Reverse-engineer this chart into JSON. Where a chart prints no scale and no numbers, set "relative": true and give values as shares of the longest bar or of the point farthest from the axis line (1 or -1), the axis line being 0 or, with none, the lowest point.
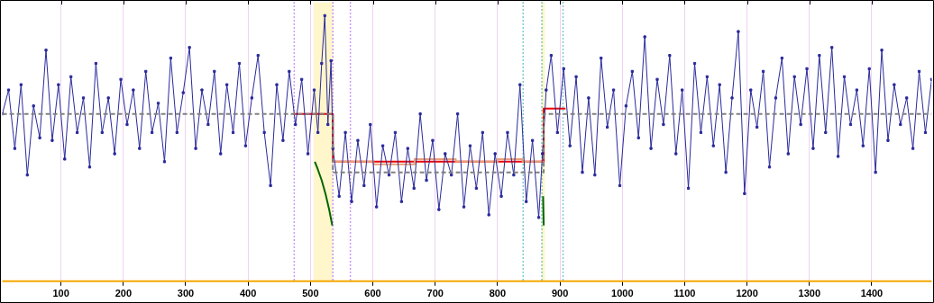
{
  "chart_data": {
    "type": "line",
    "relative": true,
    "xlim": [
      6,
      1496
    ],
    "xticks": [
      100,
      200,
      300,
      400,
      500,
      600,
      700,
      800,
      900,
      1000,
      1100,
      1200,
      1300,
      1400
    ],
    "grid": "x",
    "legend": false,
    "bands": [
      {
        "axis": "x",
        "from": 505,
        "to": 536,
        "color": "#fff6cc"
      },
      {
        "axis": "x",
        "from": 871,
        "to": 876,
        "color": "#fff6cc"
      }
    ],
    "ref_lines": [
      {
        "axis": "x",
        "value": 474,
        "color": "#9933ff",
        "line_style": "dotted"
      },
      {
        "axis": "x",
        "value": 536,
        "color": "#9933ff",
        "line_style": "dotted"
      },
      {
        "axis": "x",
        "value": 564,
        "color": "#9933ff",
        "line_style": "dotted"
      },
      {
        "axis": "x",
        "value": 841,
        "color": "#009999",
        "line_style": "dotted"
      },
      {
        "axis": "x",
        "value": 871,
        "color": "#009999",
        "line_style": "dotted"
      },
      {
        "axis": "x",
        "value": 905,
        "color": "#009999",
        "line_style": "dotted"
      }
    ],
    "series": [
      {
        "color": "#808080",
        "line_style": "dashed",
        "marker": "none",
        "x": [
          6,
          536,
          536,
          874,
          874,
          1496
        ],
        "values": [
          0.63,
          0.63,
          0.41,
          0.41,
          0.63,
          0.63
        ]
      },
      {
        "color": "#2a2a9c",
        "line_style": "solid",
        "marker": "square",
        "x": [
          6,
          16,
          26,
          36,
          46,
          56,
          66,
          76,
          86,
          96,
          106,
          116,
          126,
          136,
          146,
          156,
          166,
          176,
          186,
          196,
          206,
          216,
          226,
          236,
          246,
          256,
          266,
          276,
          286,
          296,
          306,
          316,
          326,
          336,
          346,
          356,
          366,
          376,
          386,
          396,
          406,
          416,
          426,
          436,
          446,
          456,
          466,
          476,
          486,
          496,
          506,
          512,
          518,
          523,
          528,
          533,
          536,
          546,
          556,
          566,
          576,
          586,
          596,
          606,
          616,
          626,
          636,
          646,
          656,
          666,
          676,
          686,
          696,
          706,
          716,
          726,
          736,
          746,
          756,
          766,
          776,
          786,
          796,
          806,
          816,
          826,
          836,
          846,
          856,
          866,
          872,
          878,
          886,
          896,
          906,
          916,
          926,
          936,
          946,
          956,
          966,
          976,
          986,
          996,
          1006,
          1016,
          1026,
          1036,
          1046,
          1056,
          1066,
          1076,
          1086,
          1096,
          1106,
          1116,
          1126,
          1136,
          1146,
          1156,
          1166,
          1176,
          1186,
          1196,
          1206,
          1216,
          1226,
          1236,
          1246,
          1256,
          1266,
          1276,
          1286,
          1296,
          1306,
          1316,
          1326,
          1336,
          1346,
          1356,
          1366,
          1376,
          1386,
          1396,
          1406,
          1416,
          1426,
          1436,
          1446,
          1456,
          1466,
          1476,
          1486,
          1496
        ],
        "values": [
          0.63,
          0.72,
          0.5,
          0.74,
          0.4,
          0.66,
          0.54,
          0.87,
          0.53,
          0.74,
          0.46,
          0.77,
          0.56,
          0.69,
          0.43,
          0.82,
          0.56,
          0.69,
          0.48,
          0.76,
          0.59,
          0.72,
          0.5,
          0.79,
          0.56,
          0.67,
          0.45,
          0.84,
          0.56,
          0.71,
          0.88,
          0.5,
          0.72,
          0.59,
          0.79,
          0.48,
          0.74,
          0.56,
          0.82,
          0.51,
          0.69,
          0.85,
          0.56,
          0.36,
          0.74,
          0.53,
          0.79,
          0.59,
          0.76,
          0.48,
          0.72,
          0.56,
          0.82,
          1.0,
          0.59,
          0.83,
          0.5,
          0.32,
          0.56,
          0.3,
          0.53,
          0.36,
          0.59,
          0.28,
          0.51,
          0.4,
          0.56,
          0.3,
          0.5,
          0.35,
          0.63,
          0.38,
          0.53,
          0.27,
          0.48,
          0.4,
          0.63,
          0.28,
          0.51,
          0.35,
          0.56,
          0.25,
          0.48,
          0.32,
          0.56,
          0.4,
          0.74,
          0.3,
          0.53,
          0.24,
          0.48,
          0.72,
          0.85,
          0.56,
          0.8,
          0.51,
          0.77,
          0.41,
          0.69,
          0.4,
          0.84,
          0.58,
          0.72,
          0.36,
          0.66,
          0.79,
          0.54,
          0.92,
          0.5,
          0.76,
          0.59,
          0.85,
          0.48,
          0.72,
          0.35,
          0.82,
          0.56,
          0.77,
          0.51,
          0.74,
          0.41,
          0.69,
          0.94,
          0.33,
          0.72,
          0.58,
          0.79,
          0.43,
          0.69,
          0.84,
          0.48,
          0.77,
          0.59,
          0.8,
          0.5,
          0.85,
          0.56,
          0.88,
          0.47,
          0.77,
          0.59,
          0.72,
          0.51,
          0.8,
          0.41,
          0.87,
          0.53,
          0.74,
          0.59,
          0.69,
          0.5,
          0.79,
          0.56,
          0.76
        ]
      },
      {
        "color": "#e9a07a",
        "line_style": "solid",
        "marker": "none",
        "x": [
          536,
          601,
          601,
          667,
          667,
          733,
          733,
          800,
          800,
          840,
          840,
          874
        ],
        "values": [
          0.45,
          0.45,
          0.44,
          0.44,
          0.46,
          0.46,
          0.45,
          0.45,
          0.46,
          0.46,
          0.45,
          0.45
        ]
      },
      {
        "color": "#ee0000",
        "line_style": "solid",
        "marker": "none",
        "x": [
          472,
          536,
          536,
          874,
          874,
          909
        ],
        "values": [
          0.63,
          0.63,
          0.45,
          0.45,
          0.65,
          0.65
        ]
      },
      {
        "color": "#006600",
        "line_style": "solid",
        "marker": "none",
        "x": [
          507,
          512,
          518,
          524,
          530,
          535,
          null,
          873,
          874
        ],
        "values": [
          0.45,
          0.42,
          0.38,
          0.33,
          0.27,
          0.21,
          null,
          0.32,
          0.21
        ]
      }
    ]
  }
}
